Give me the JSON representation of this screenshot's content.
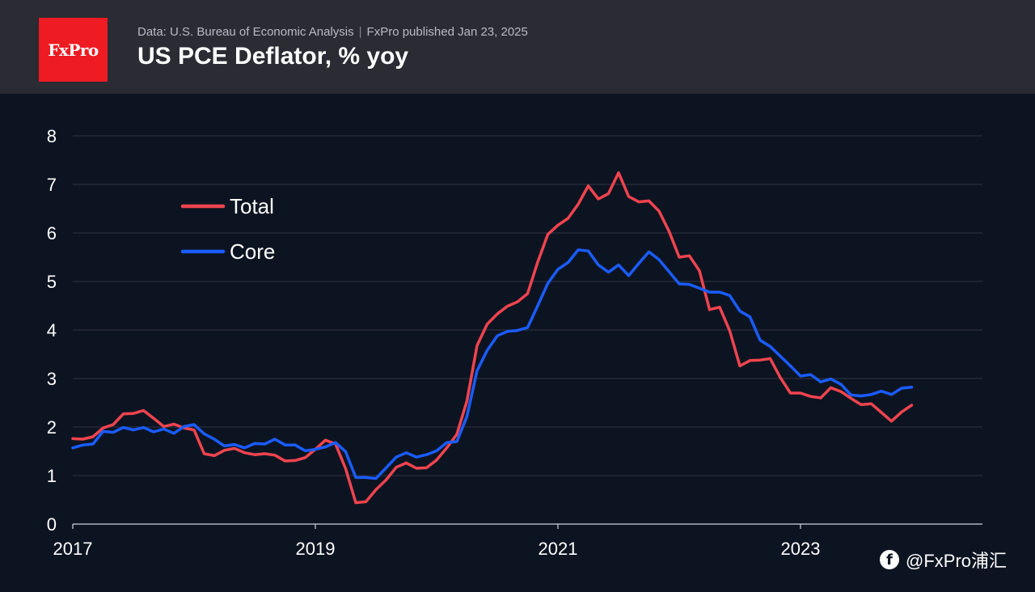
{
  "header": {
    "logo_text": "FxPro",
    "source": "Data: U.S. Bureau of Economic Analysis",
    "separator": "|",
    "published": "FxPro published Jan 23, 2025",
    "title": "US PCE Deflator, % yoy"
  },
  "watermark": {
    "icon": "f",
    "text": "@FxPro浦汇"
  },
  "colors": {
    "background": "#0d1421",
    "header_bg": "#2a2b33",
    "logo_bg": "#ee1b22",
    "grid": "#2e3545",
    "total": "#f0444f",
    "core": "#1a5cff"
  },
  "chart_data": {
    "type": "line",
    "title": "US PCE Deflator, % yoy",
    "xlabel": "",
    "ylabel": "",
    "ylim": [
      0,
      8
    ],
    "xlim": [
      2017.0,
      2024.5
    ],
    "yticks": [
      "0",
      "1",
      "2",
      "3",
      "4",
      "5",
      "6",
      "7",
      "8"
    ],
    "xticks": [
      {
        "value": 2017,
        "label": "2017"
      },
      {
        "value": 2019,
        "label": "2019"
      },
      {
        "value": 2021,
        "label": "2021"
      },
      {
        "value": 2023,
        "label": "2023"
      }
    ],
    "grid": true,
    "legend_position": "top-left",
    "start": "2017-01",
    "series": [
      {
        "name": "Total",
        "values": [
          1.76,
          1.75,
          1.8,
          1.98,
          2.05,
          2.27,
          2.28,
          2.34,
          2.18,
          2.01,
          2.06,
          1.98,
          1.94,
          1.45,
          1.41,
          1.52,
          1.56,
          1.47,
          1.43,
          1.45,
          1.42,
          1.3,
          1.31,
          1.37,
          1.54,
          1.73,
          1.65,
          1.14,
          0.44,
          0.46,
          0.71,
          0.91,
          1.17,
          1.26,
          1.15,
          1.16,
          1.32,
          1.57,
          1.85,
          2.54,
          3.68,
          4.12,
          4.33,
          4.49,
          4.58,
          4.75,
          5.4,
          5.97,
          6.16,
          6.3,
          6.59,
          6.97,
          6.7,
          6.81,
          7.24,
          6.75,
          6.64,
          6.66,
          6.45,
          6.03,
          5.5,
          5.53,
          5.22,
          4.42,
          4.47,
          3.98,
          3.26,
          3.37,
          3.38,
          3.41,
          3.02,
          2.7,
          2.7,
          2.63,
          2.6,
          2.81,
          2.73,
          2.59,
          2.46,
          2.48,
          2.3,
          2.12,
          2.31,
          2.45
        ]
      },
      {
        "name": "Core",
        "values": [
          1.57,
          1.63,
          1.65,
          1.91,
          1.89,
          1.99,
          1.94,
          1.99,
          1.9,
          1.96,
          1.87,
          2.01,
          2.05,
          1.86,
          1.75,
          1.61,
          1.64,
          1.57,
          1.66,
          1.65,
          1.75,
          1.63,
          1.63,
          1.51,
          1.54,
          1.59,
          1.68,
          1.49,
          0.96,
          0.96,
          0.94,
          1.16,
          1.38,
          1.47,
          1.38,
          1.43,
          1.51,
          1.68,
          1.7,
          2.22,
          3.16,
          3.58,
          3.88,
          3.97,
          3.99,
          4.05,
          4.5,
          4.96,
          5.25,
          5.39,
          5.65,
          5.63,
          5.34,
          5.19,
          5.34,
          5.12,
          5.37,
          5.61,
          5.45,
          5.2,
          4.95,
          4.94,
          4.86,
          4.78,
          4.78,
          4.71,
          4.39,
          4.27,
          3.79,
          3.66,
          3.46,
          3.26,
          3.05,
          3.08,
          2.93,
          2.99,
          2.88,
          2.66,
          2.64,
          2.67,
          2.74,
          2.67,
          2.8,
          2.82
        ]
      }
    ]
  }
}
